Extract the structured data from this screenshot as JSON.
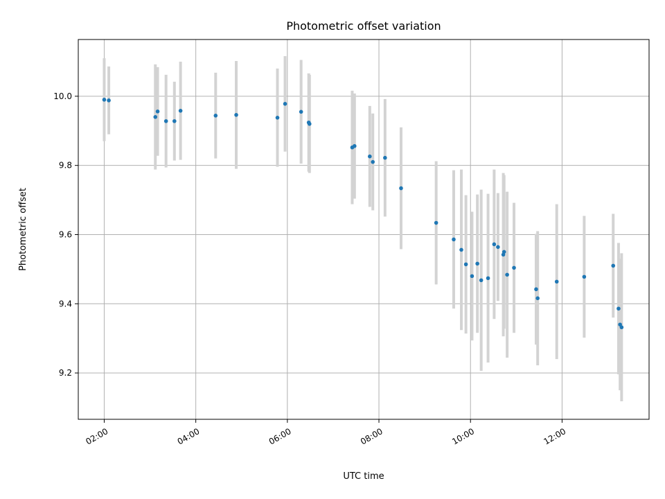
{
  "chart_data": {
    "type": "scatter",
    "title": "Photometric offset variation",
    "xlabel": "UTC time",
    "ylabel": "Photometric offset",
    "xlim": [
      "01:26",
      "13:54"
    ],
    "ylim": [
      9.066,
      10.164
    ],
    "x_ticks": [
      "02:00",
      "04:00",
      "06:00",
      "08:00",
      "10:00",
      "12:00"
    ],
    "y_ticks": [
      9.2,
      9.4,
      9.6,
      9.8,
      10.0
    ],
    "grid": true,
    "colors": {
      "point": "#1f77b4",
      "errorbar": "#d3d3d3"
    },
    "points": [
      {
        "x": "02:00",
        "y": 9.99,
        "yerr": 0.12
      },
      {
        "x": "02:06",
        "y": 9.988,
        "yerr": 0.098
      },
      {
        "x": "03:07",
        "y": 9.94,
        "yerr": 0.152
      },
      {
        "x": "03:10",
        "y": 9.956,
        "yerr": 0.128
      },
      {
        "x": "03:21",
        "y": 9.928,
        "yerr": 0.134
      },
      {
        "x": "03:32",
        "y": 9.928,
        "yerr": 0.114
      },
      {
        "x": "03:40",
        "y": 9.958,
        "yerr": 0.142
      },
      {
        "x": "04:26",
        "y": 9.944,
        "yerr": 0.124
      },
      {
        "x": "04:53",
        "y": 9.946,
        "yerr": 0.156
      },
      {
        "x": "05:47",
        "y": 9.938,
        "yerr": 0.142
      },
      {
        "x": "05:57",
        "y": 9.978,
        "yerr": 0.138
      },
      {
        "x": "06:18",
        "y": 9.955,
        "yerr": 0.15
      },
      {
        "x": "06:28",
        "y": 9.924,
        "yerr": 0.142
      },
      {
        "x": "06:29",
        "y": 9.92,
        "yerr": 0.142
      },
      {
        "x": "07:25",
        "y": 9.852,
        "yerr": 0.164
      },
      {
        "x": "07:28",
        "y": 9.856,
        "yerr": 0.152
      },
      {
        "x": "07:48",
        "y": 9.826,
        "yerr": 0.146
      },
      {
        "x": "07:52",
        "y": 9.81,
        "yerr": 0.14
      },
      {
        "x": "08:08",
        "y": 9.822,
        "yerr": 0.17
      },
      {
        "x": "08:29",
        "y": 9.734,
        "yerr": 0.176
      },
      {
        "x": "09:15",
        "y": 9.634,
        "yerr": 0.178
      },
      {
        "x": "09:38",
        "y": 9.586,
        "yerr": 0.2
      },
      {
        "x": "09:48",
        "y": 9.556,
        "yerr": 0.232
      },
      {
        "x": "09:54",
        "y": 9.514,
        "yerr": 0.2
      },
      {
        "x": "10:02",
        "y": 9.48,
        "yerr": 0.186
      },
      {
        "x": "10:09",
        "y": 9.516,
        "yerr": 0.2
      },
      {
        "x": "10:14",
        "y": 9.468,
        "yerr": 0.262
      },
      {
        "x": "10:23",
        "y": 9.474,
        "yerr": 0.244
      },
      {
        "x": "10:31",
        "y": 9.572,
        "yerr": 0.216
      },
      {
        "x": "10:36",
        "y": 9.564,
        "yerr": 0.156
      },
      {
        "x": "10:43",
        "y": 9.542,
        "yerr": 0.236
      },
      {
        "x": "10:44",
        "y": 9.55,
        "yerr": 0.222
      },
      {
        "x": "10:48",
        "y": 9.484,
        "yerr": 0.24
      },
      {
        "x": "10:57",
        "y": 9.504,
        "yerr": 0.188
      },
      {
        "x": "11:26",
        "y": 9.442,
        "yerr": 0.16
      },
      {
        "x": "11:28",
        "y": 9.416,
        "yerr": 0.194
      },
      {
        "x": "11:53",
        "y": 9.464,
        "yerr": 0.224
      },
      {
        "x": "12:29",
        "y": 9.478,
        "yerr": 0.176
      },
      {
        "x": "13:07",
        "y": 9.51,
        "yerr": 0.15
      },
      {
        "x": "13:14",
        "y": 9.386,
        "yerr": 0.19
      },
      {
        "x": "13:16",
        "y": 9.34,
        "yerr": 0.19
      },
      {
        "x": "13:18",
        "y": 9.332,
        "yerr": 0.214
      }
    ]
  }
}
